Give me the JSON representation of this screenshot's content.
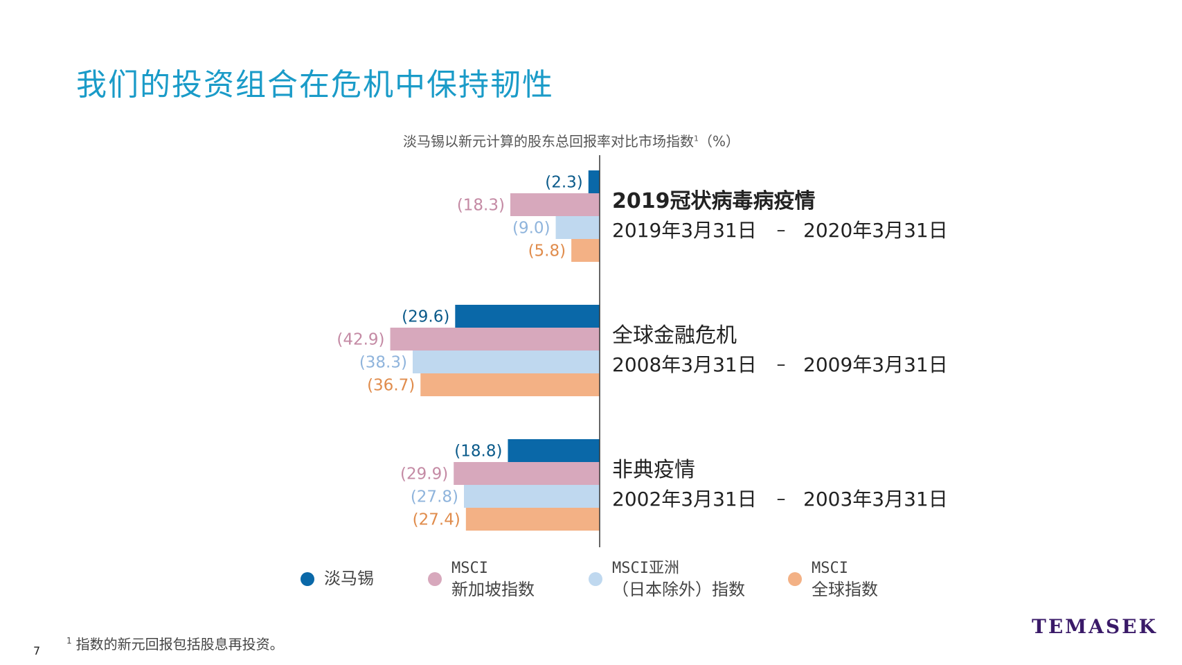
{
  "title": "我们的投资组合在危机中保持韧性",
  "subtitle": {
    "text": "淡马锡以新元计算的股东总回报率对比市场指数",
    "sup": "1",
    "unit": "（%）"
  },
  "chart_data": {
    "type": "bar",
    "orientation": "horizontal",
    "value_format": "negative values shown in parentheses",
    "series": [
      {
        "name": "淡马锡",
        "color": "#0a68a8",
        "label_color": "#0a5a8a"
      },
      {
        "name": "MSCI 新加坡指数",
        "color": "#d7a8bc",
        "label_color": "#c48aa4"
      },
      {
        "name": "MSCI亚洲（日本除外）指数",
        "color": "#bfd8ef",
        "label_color": "#8fb4dc"
      },
      {
        "name": "MSCI 全球指数",
        "color": "#f3b185",
        "label_color": "#e08c4c"
      }
    ],
    "groups": [
      {
        "name": "2019冠状病毒病疫情",
        "name_bold": true,
        "period_start": "2019年3月31日",
        "period_end": "2020年3月31日",
        "values": [
          -2.3,
          -18.3,
          -9.0,
          -5.8
        ],
        "labels": [
          "(2.3)",
          "(18.3)",
          "(9.0)",
          "(5.8)"
        ]
      },
      {
        "name": "全球金融危机",
        "name_bold": false,
        "period_start": "2008年3月31日",
        "period_end": "2009年3月31日",
        "values": [
          -29.6,
          -42.9,
          -38.3,
          -36.7
        ],
        "labels": [
          "(29.6)",
          "(42.9)",
          "(38.3)",
          "(36.7)"
        ]
      },
      {
        "name": "非典疫情",
        "name_bold": false,
        "period_start": "2002年3月31日",
        "period_end": "2003年3月31日",
        "values": [
          -18.8,
          -29.9,
          -27.8,
          -27.4
        ],
        "labels": [
          "(18.8)",
          "(29.9)",
          "(27.8)",
          "(27.4)"
        ]
      }
    ],
    "period_separator": "–",
    "xlim": [
      -43,
      0
    ],
    "grid": false
  },
  "legend": [
    {
      "line1": "淡马锡",
      "line2": "",
      "color": "#0a68a8"
    },
    {
      "line1": "MSCI",
      "line2": "新加坡指数",
      "color": "#d7a8bc"
    },
    {
      "line1": "MSCI亚洲",
      "line2": "（日本除外）指数",
      "color": "#bfd8ef"
    },
    {
      "line1": "MSCI",
      "line2": "全球指数",
      "color": "#f3b185"
    }
  ],
  "footnote": {
    "sup": "1",
    "text": "指数的新元回报包括股息再投资。"
  },
  "page_number": "7",
  "logo": "TEMASEK"
}
